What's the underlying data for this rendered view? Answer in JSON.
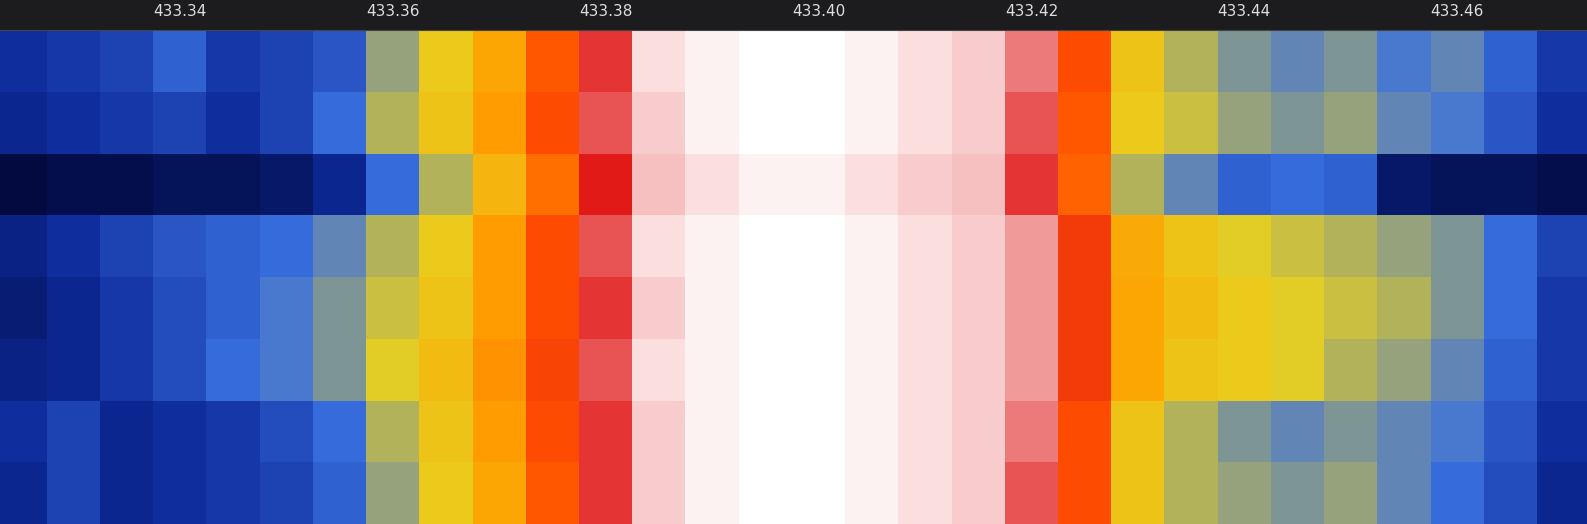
{
  "chart_data": {
    "type": "heatmap",
    "x": [
      433.3225,
      433.3275,
      433.3325,
      433.3375,
      433.3425,
      433.3475,
      433.3525,
      433.3575,
      433.3625,
      433.3675,
      433.3725,
      433.3775,
      433.3825,
      433.3875,
      433.3925,
      433.3975,
      433.4025,
      433.4075,
      433.4125,
      433.4175,
      433.4225,
      433.4275,
      433.4325,
      433.4375,
      433.4425,
      433.4475,
      433.4525,
      433.4575,
      433.4625,
      433.4675,
      433.4725
    ],
    "cells": [
      [
        18,
        20,
        22,
        28,
        20,
        22,
        26,
        38,
        46,
        56,
        70,
        86,
        96,
        97,
        98,
        98,
        97,
        96,
        95,
        90,
        72,
        48,
        40,
        36,
        34,
        36,
        32,
        34,
        28,
        20
      ],
      [
        16,
        18,
        20,
        22,
        18,
        22,
        30,
        40,
        48,
        58,
        72,
        88,
        95,
        97,
        98,
        98,
        97,
        96,
        95,
        88,
        70,
        46,
        42,
        38,
        36,
        38,
        34,
        32,
        26,
        18
      ],
      [
        4,
        6,
        6,
        8,
        8,
        10,
        16,
        30,
        40,
        52,
        66,
        84,
        94,
        96,
        97,
        97,
        96,
        95,
        94,
        86,
        68,
        40,
        34,
        28,
        30,
        28,
        10,
        8,
        8,
        6
      ],
      [
        14,
        18,
        22,
        26,
        28,
        30,
        34,
        40,
        46,
        58,
        72,
        88,
        96,
        97,
        98,
        98,
        97,
        96,
        95,
        92,
        76,
        55,
        48,
        44,
        42,
        40,
        38,
        36,
        30,
        22
      ],
      [
        12,
        16,
        20,
        24,
        28,
        32,
        36,
        42,
        48,
        58,
        72,
        86,
        95,
        97,
        98,
        98,
        97,
        96,
        95,
        92,
        76,
        56,
        50,
        46,
        44,
        42,
        40,
        36,
        30,
        20
      ],
      [
        14,
        16,
        20,
        24,
        30,
        32,
        36,
        44,
        50,
        60,
        74,
        88,
        96,
        97,
        98,
        98,
        97,
        96,
        95,
        92,
        76,
        56,
        48,
        46,
        44,
        40,
        38,
        34,
        28,
        20
      ],
      [
        18,
        22,
        16,
        18,
        20,
        24,
        30,
        40,
        48,
        58,
        72,
        86,
        95,
        97,
        98,
        98,
        97,
        96,
        95,
        90,
        72,
        48,
        40,
        36,
        34,
        36,
        34,
        32,
        26,
        18
      ],
      [
        16,
        22,
        16,
        18,
        20,
        22,
        28,
        38,
        46,
        56,
        70,
        86,
        95,
        97,
        98,
        98,
        97,
        96,
        95,
        88,
        72,
        48,
        40,
        38,
        36,
        38,
        34,
        30,
        24,
        16
      ]
    ],
    "xlim": [
      433.3231,
      433.4722
    ],
    "xticks": [
      433.34,
      433.36,
      433.38,
      {
        "value": 433.4,
        "label": "433.40"
      },
      433.42,
      433.44,
      433.46
    ],
    "tick_labels": "x"
  }
}
